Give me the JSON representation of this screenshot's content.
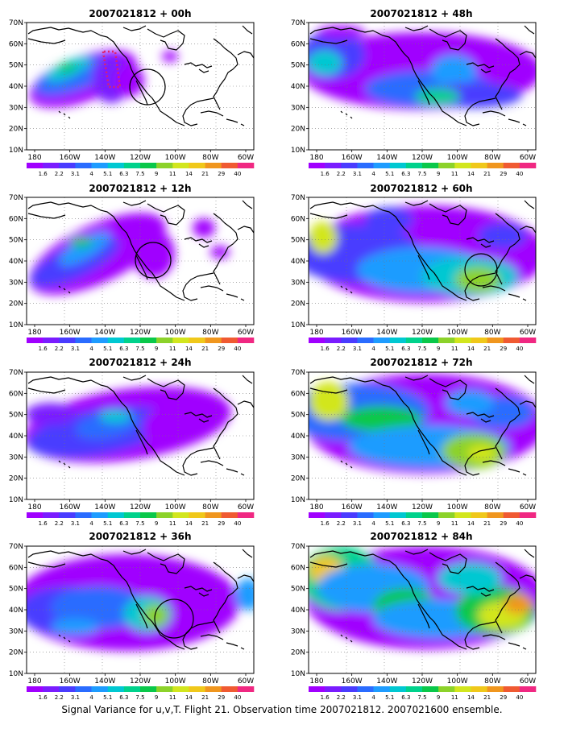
{
  "figure": {
    "caption": "Signal Variance for u,v,T. Flight 21. Observation time 2007021812. 2007021600 ensemble.",
    "lat_labels": [
      "10N",
      "20N",
      "30N",
      "40N",
      "50N",
      "60N",
      "70N"
    ],
    "lon_labels": [
      "180",
      "160W",
      "140W",
      "120W",
      "100W",
      "80W",
      "60W"
    ],
    "colorbar": {
      "labels": [
        "1.6",
        "2.2",
        "3.1",
        "4",
        "5.1",
        "6.3",
        "7.5",
        "9",
        "11",
        "14",
        "21",
        "29",
        "40"
      ],
      "colors": [
        "#a000ff",
        "#7a1cff",
        "#4a3cff",
        "#2a6cff",
        "#1e9cff",
        "#00c8d2",
        "#00d28c",
        "#0ac84a",
        "#8cd22a",
        "#d2e61e",
        "#f0c81a",
        "#f0961e",
        "#f05a32",
        "#f02882"
      ]
    },
    "panels": [
      {
        "title": "2007021812 + 00h"
      },
      {
        "title": "2007021812 + 48h"
      },
      {
        "title": "2007021812 + 12h"
      },
      {
        "title": "2007021812 + 60h"
      },
      {
        "title": "2007021812 + 24h"
      },
      {
        "title": "2007021812 + 72h"
      },
      {
        "title": "2007021812 + 36h"
      },
      {
        "title": "2007021812 + 84h"
      }
    ]
  }
}
